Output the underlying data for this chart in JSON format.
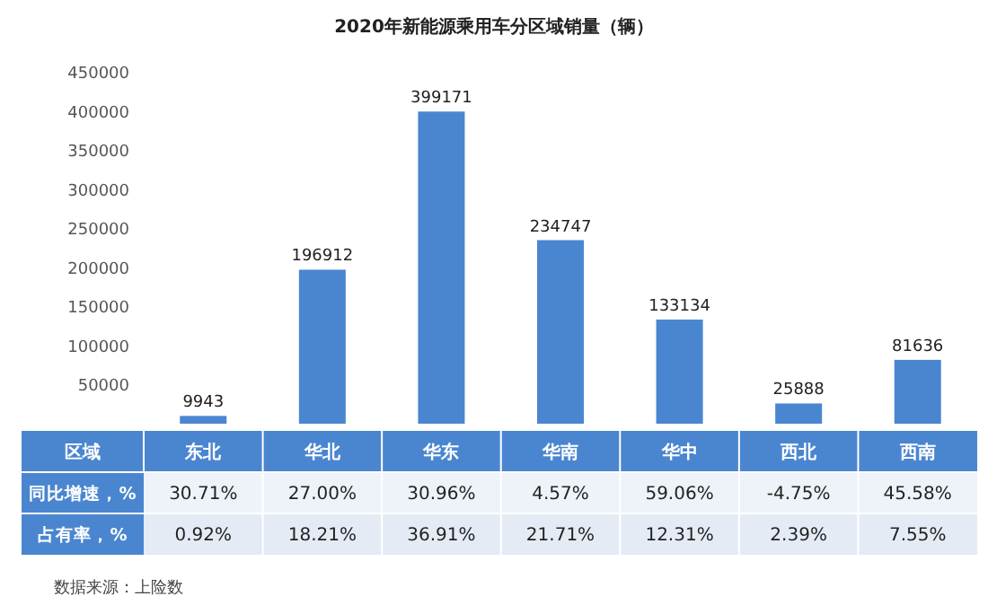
{
  "chart_data": {
    "type": "bar",
    "title": "2020年新能源乘用车分区域销量（辆）",
    "xlabel": "区域",
    "categories": [
      "东北",
      "华北",
      "华东",
      "华南",
      "华中",
      "西北",
      "西南"
    ],
    "series": [
      {
        "color": "#4a86d0",
        "values": [
          9943,
          196912,
          399171,
          234747,
          133134,
          25888,
          81636
        ]
      }
    ],
    "data_labels": true,
    "ylim": [
      0,
      450000
    ],
    "yticks": [
      50000,
      100000,
      150000,
      200000,
      250000,
      300000,
      350000,
      400000,
      450000
    ],
    "annotations": [
      "同比增速，%",
      "30.71%",
      "27.00%",
      "30.96%",
      "4.57%",
      "59.06%",
      "-4.75%",
      "45.58%",
      "占有率，%",
      "0.92%",
      "18.21%",
      "36.91%",
      "21.71%",
      "12.31%",
      "2.39%",
      "7.55%",
      "数据来源：上险数"
    ]
  }
}
